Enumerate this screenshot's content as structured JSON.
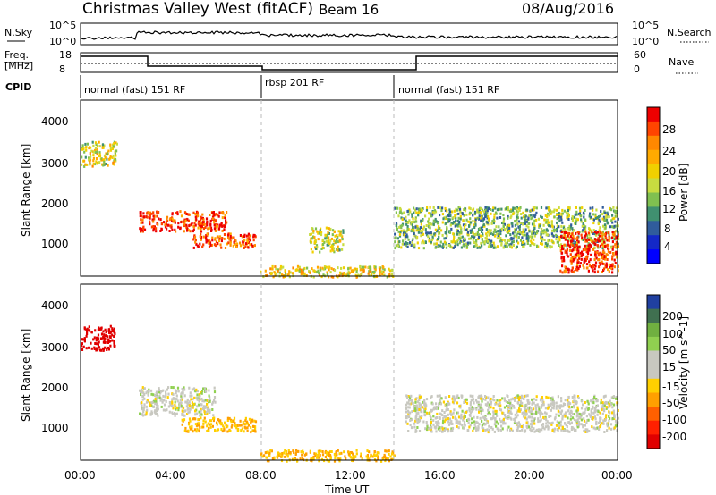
{
  "header": {
    "title": "Christmas Valley West (fitACF)",
    "beam": "Beam 16",
    "date": "08/Aug/2016"
  },
  "summary": {
    "nsky_label": "N.Sky",
    "nsearch_label": "N.Search",
    "nsky_ticks": [
      "10^5",
      "10^0"
    ],
    "nsky_right_ticks": [
      "10^5",
      "10^0"
    ],
    "freq_label_1": "Freq.",
    "freq_label_2": "[MHz]",
    "freq_ticks": [
      "18",
      "8"
    ],
    "nave_label": "Nave",
    "nave_ticks": [
      "60",
      "0"
    ],
    "cpid_label": "CPID",
    "cpid_segments": [
      {
        "label": "normal (fast) 151 RF",
        "start_hour": 0
      },
      {
        "label": "rbsp 201 RF",
        "start_hour": 8
      },
      {
        "label": "normal (fast) 151 RF",
        "start_hour": 14
      }
    ]
  },
  "axes": {
    "ylabel": "Slant Range [km]",
    "xlabel": "Time UT",
    "yticks": [
      "4000",
      "3000",
      "2000",
      "1000"
    ],
    "xticks": [
      "00:00",
      "04:00",
      "08:00",
      "12:00",
      "16:00",
      "20:00",
      "00:00"
    ]
  },
  "colorbars": {
    "power": {
      "title": "Power [dB]",
      "ticks": [
        "28",
        "24",
        "20",
        "16",
        "12",
        "8",
        "4"
      ],
      "colors": [
        "#ee0000",
        "#ff4400",
        "#ff8800",
        "#ffaa00",
        "#f0d000",
        "#c8dc40",
        "#80c050",
        "#409070",
        "#305c9c",
        "#1428c8",
        "#0000ff"
      ]
    },
    "velocity": {
      "title": "Velocity [m s^-1]",
      "ticks": [
        "200",
        "100",
        "50",
        "15",
        "-15",
        "-50",
        "-100",
        "-200"
      ],
      "colors": [
        "#2040a0",
        "#407050",
        "#70b040",
        "#90d050",
        "#c8c8c0",
        "#c8c8c0",
        "#ffd000",
        "#ffa000",
        "#ff6000",
        "#ff2000",
        "#e00000"
      ]
    }
  },
  "chart_data": {
    "type": "heatmap",
    "x_range_hours": [
      0,
      24
    ],
    "y_range_km": [
      180,
      4500
    ],
    "power_regions": [
      {
        "t0": 0.0,
        "t1": 1.6,
        "r0": 2900,
        "r1": 3500,
        "level": 0.55
      },
      {
        "t0": 2.6,
        "t1": 6.5,
        "r0": 1300,
        "r1": 1800,
        "level": 0.95
      },
      {
        "t0": 5.0,
        "t1": 7.8,
        "r0": 900,
        "r1": 1250,
        "level": 0.9
      },
      {
        "t0": 8.0,
        "t1": 14.0,
        "r0": 180,
        "r1": 450,
        "level": 0.6
      },
      {
        "t0": 10.2,
        "t1": 11.7,
        "r0": 800,
        "r1": 1400,
        "level": 0.5
      },
      {
        "t0": 14.0,
        "t1": 24.0,
        "r0": 900,
        "r1": 1900,
        "level": 0.4
      },
      {
        "t0": 21.4,
        "t1": 24.0,
        "r0": 300,
        "r1": 1300,
        "level": 0.95
      }
    ],
    "velocity_regions": [
      {
        "t0": 0.0,
        "t1": 1.5,
        "r0": 2900,
        "r1": 3500,
        "value": -200
      },
      {
        "t0": 2.6,
        "t1": 6.0,
        "r0": 1300,
        "r1": 2000,
        "value": 0
      },
      {
        "t0": 4.5,
        "t1": 7.8,
        "r0": 900,
        "r1": 1250,
        "value": -50
      },
      {
        "t0": 8.0,
        "t1": 14.0,
        "r0": 180,
        "r1": 450,
        "value": -50
      },
      {
        "t0": 14.5,
        "t1": 24.0,
        "r0": 900,
        "r1": 1800,
        "value": 0
      }
    ]
  }
}
